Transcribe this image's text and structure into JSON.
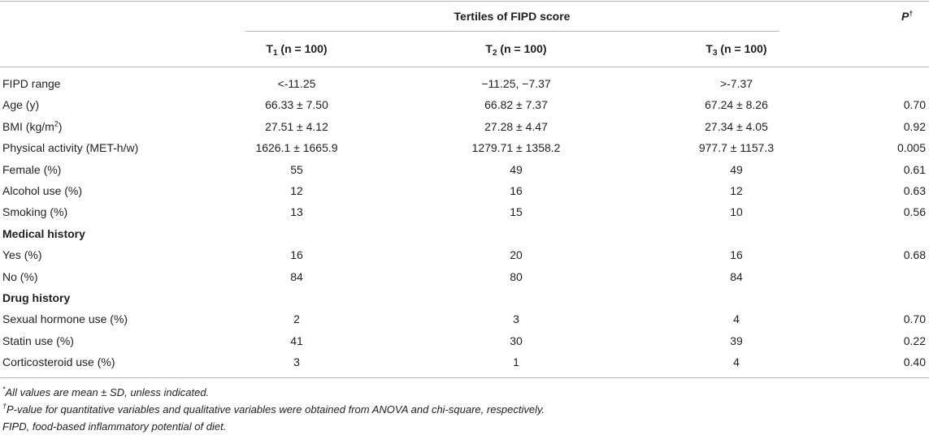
{
  "header": {
    "tertiles_title": "Tertiles of FIPD score",
    "p_label": "P",
    "p_mark": "†",
    "columns": [
      {
        "t": "T",
        "sub": "1",
        "n": " (n = 100)"
      },
      {
        "t": "T",
        "sub": "2",
        "n": " (n = 100)"
      },
      {
        "t": "T",
        "sub": "3",
        "n": " (n = 100)"
      }
    ]
  },
  "rows": [
    {
      "label": "FIPD range",
      "t1": "<-11.25",
      "t2": "−11.25, −7.37",
      "t3": ">-7.37",
      "p": ""
    },
    {
      "label": "Age (y)",
      "t1": "66.33 ± 7.50",
      "t2": "66.82 ± 7.37",
      "t3": "67.24 ± 8.26",
      "p": "0.70"
    },
    {
      "label": "BMI (kg/m",
      "label_sup": "2",
      "label_end": ")",
      "t1": "27.51 ± 4.12",
      "t2": "27.28 ± 4.47",
      "t3": "27.34 ± 4.05",
      "p": "0.92"
    },
    {
      "label": "Physical activity (MET-h/w)",
      "t1": "1626.1 ± 1665.9",
      "t2": "1279.71 ± 1358.2",
      "t3": "977.7 ± 1157.3",
      "p": "0.005"
    },
    {
      "label": "Female (%)",
      "t1": "55",
      "t2": "49",
      "t3": "49",
      "p": "0.61"
    },
    {
      "label": "Alcohol use (%)",
      "t1": "12",
      "t2": "16",
      "t3": "12",
      "p": "0.63"
    },
    {
      "label": "Smoking (%)",
      "t1": "13",
      "t2": "15",
      "t3": "10",
      "p": "0.56"
    },
    {
      "label": "Medical history",
      "section": true
    },
    {
      "label": "Yes (%)",
      "t1": "16",
      "t2": "20",
      "t3": "16",
      "p": "0.68"
    },
    {
      "label": "No (%)",
      "t1": "84",
      "t2": "80",
      "t3": "84",
      "p": ""
    },
    {
      "label": "Drug history",
      "section": true
    },
    {
      "label": "Sexual hormone use (%)",
      "t1": "2",
      "t2": "3",
      "t3": "4",
      "p": "0.70"
    },
    {
      "label": "Statin use (%)",
      "t1": "41",
      "t2": "30",
      "t3": "39",
      "p": "0.22"
    },
    {
      "label": "Corticosteroid use (%)",
      "t1": "3",
      "t2": "1",
      "t3": "4",
      "p": "0.40"
    }
  ],
  "footnotes": {
    "n1_mark": "*",
    "n1": "All values are mean ± SD, unless indicated.",
    "n2_mark": "†",
    "n2": "P-value for quantitative variables and qualitative variables were obtained from ANOVA and chi-square, respectively.",
    "n3": "FIPD, food-based inflammatory potential of diet."
  }
}
